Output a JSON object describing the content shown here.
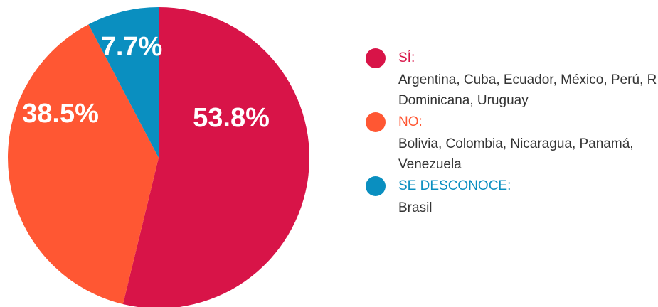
{
  "chart_data": {
    "type": "pie",
    "categories": [
      "SÍ:",
      "NO:",
      "SE DESCONOCE:"
    ],
    "descriptions": [
      " Argentina, Cuba, Ecuador, México, Perú, R. Dominicana, Uruguay",
      "Bolivia, Colombia, Nicaragua, Panamá, Venezuela",
      "Brasil"
    ],
    "values": [
      53.8,
      38.5,
      7.7
    ],
    "value_labels": [
      "53.8%",
      "38.5%",
      "7.7%"
    ],
    "colors": [
      "#d81448",
      "#ff5733",
      "#0a8fc0"
    ],
    "legend": "right"
  }
}
